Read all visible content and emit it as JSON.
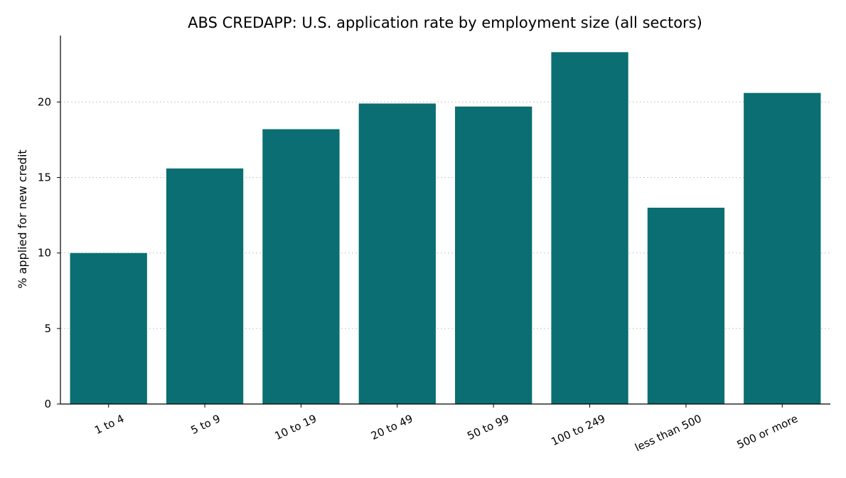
{
  "chart_data": {
    "type": "bar",
    "title": "ABS CREDAPP: U.S. application rate by employment size (all sectors)",
    "xlabel": "",
    "ylabel": "% applied for new credit",
    "categories": [
      "1 to 4",
      "5 to 9",
      "10 to 19",
      "20 to 49",
      "50 to 99",
      "100 to 249",
      "less than 500",
      "500 or more"
    ],
    "values": [
      10.0,
      15.6,
      18.2,
      19.9,
      19.7,
      23.3,
      13.0,
      20.6
    ],
    "yticks": [
      0,
      5,
      10,
      15,
      20
    ],
    "ylim": [
      0,
      24.4
    ],
    "grid": "horizontal dotted",
    "bar_color": "#0a6e72"
  }
}
